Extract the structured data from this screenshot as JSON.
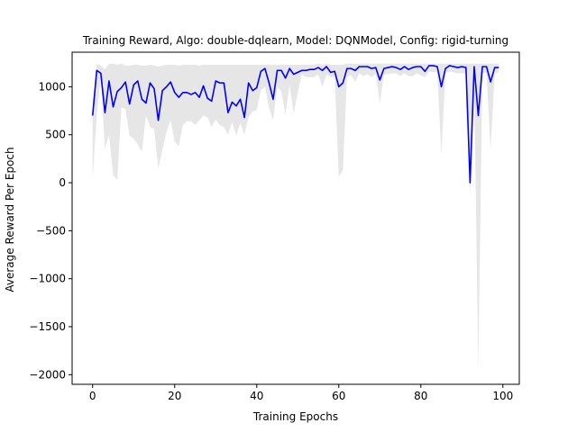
{
  "chart_data": {
    "type": "line",
    "title": "Training Reward, Algo: double-dqlearn, Model: DQNModel, Config: rigid-turning",
    "xlabel": "Training Epochs",
    "ylabel": "Average Reward Per Epoch",
    "xlim": [
      -5,
      104
    ],
    "ylim": [
      -2100,
      1360
    ],
    "xticks": [
      0,
      20,
      40,
      60,
      80,
      100
    ],
    "xtick_labels": [
      "0",
      "20",
      "40",
      "60",
      "80",
      "100"
    ],
    "yticks": [
      -2000,
      -1500,
      -1000,
      -500,
      0,
      500,
      1000
    ],
    "ytick_labels": [
      "−2000",
      "−1500",
      "−1000",
      "−500",
      "0",
      "500",
      "1000"
    ],
    "grid": false,
    "series": [
      {
        "color": "#0000ff",
        "x": [
          0,
          1,
          2,
          3,
          4,
          5,
          6,
          7,
          8,
          9,
          10,
          11,
          12,
          13,
          14,
          15,
          16,
          17,
          18,
          19,
          20,
          21,
          22,
          23,
          24,
          25,
          26,
          27,
          28,
          29,
          30,
          31,
          32,
          33,
          34,
          35,
          36,
          37,
          38,
          39,
          40,
          41,
          42,
          43,
          44,
          45,
          46,
          47,
          48,
          49,
          50,
          51,
          52,
          53,
          54,
          55,
          56,
          57,
          58,
          59,
          60,
          61,
          62,
          63,
          64,
          65,
          66,
          67,
          68,
          69,
          70,
          71,
          72,
          73,
          74,
          75,
          76,
          77,
          78,
          79,
          80,
          81,
          82,
          83,
          84,
          85,
          86,
          87,
          88,
          89,
          90,
          91,
          92,
          93,
          94,
          95,
          96,
          97,
          98,
          99
        ],
        "y": [
          700,
          1170,
          1140,
          730,
          1060,
          790,
          950,
          990,
          1050,
          820,
          1020,
          1060,
          870,
          830,
          1040,
          980,
          650,
          960,
          1000,
          1050,
          940,
          890,
          940,
          940,
          920,
          940,
          890,
          1010,
          880,
          850,
          1060,
          1040,
          1040,
          730,
          840,
          800,
          870,
          680,
          1040,
          960,
          990,
          1160,
          1190,
          1040,
          870,
          1170,
          1170,
          1090,
          1190,
          1130,
          1150,
          1170,
          1170,
          1180,
          1180,
          1200,
          1170,
          1210,
          1150,
          1160,
          1000,
          1040,
          1190,
          1190,
          1170,
          1210,
          1210,
          1210,
          1190,
          1200,
          1070,
          1190,
          1200,
          1210,
          1200,
          1180,
          1210,
          1180,
          1200,
          1210,
          1210,
          1160,
          1220,
          1220,
          1210,
          1000,
          1190,
          1220,
          1210,
          1200,
          1210,
          1200,
          0,
          1210,
          700,
          1210,
          1210,
          1050,
          1200,
          1200
        ]
      }
    ],
    "band": {
      "color": "#e6e6e6",
      "x": [
        0,
        1,
        2,
        3,
        4,
        5,
        6,
        7,
        8,
        9,
        10,
        11,
        12,
        13,
        14,
        15,
        16,
        17,
        18,
        19,
        20,
        21,
        22,
        23,
        24,
        25,
        26,
        27,
        28,
        29,
        30,
        31,
        32,
        33,
        34,
        35,
        36,
        37,
        38,
        39,
        40,
        41,
        42,
        43,
        44,
        45,
        46,
        47,
        48,
        49,
        50,
        51,
        52,
        53,
        54,
        55,
        56,
        57,
        58,
        59,
        60,
        61,
        62,
        63,
        64,
        65,
        66,
        67,
        68,
        69,
        70,
        71,
        72,
        73,
        74,
        75,
        76,
        77,
        78,
        79,
        80,
        81,
        82,
        83,
        84,
        85,
        86,
        87,
        88,
        89,
        90,
        91,
        92,
        93,
        94,
        95,
        96,
        97,
        98,
        99
      ],
      "lower": [
        40,
        700,
        1080,
        350,
        500,
        80,
        30,
        780,
        770,
        490,
        460,
        400,
        320,
        700,
        580,
        560,
        150,
        340,
        530,
        650,
        430,
        380,
        600,
        640,
        640,
        600,
        650,
        700,
        680,
        580,
        660,
        600,
        580,
        500,
        630,
        490,
        620,
        500,
        680,
        740,
        760,
        960,
        1000,
        780,
        650,
        1000,
        950,
        710,
        1020,
        720,
        940,
        1130,
        1100,
        1100,
        1100,
        1130,
        1000,
        1130,
        1100,
        1100,
        60,
        130,
        1100,
        1120,
        1050,
        1140,
        1110,
        1130,
        1100,
        1140,
        830,
        1130,
        1130,
        1140,
        1140,
        1110,
        1140,
        1110,
        1110,
        1140,
        1120,
        1100,
        1160,
        1150,
        1160,
        290,
        1140,
        1160,
        1150,
        1140,
        1140,
        1140,
        -130,
        1100,
        -1970,
        1140,
        1140,
        340,
        1140,
        1150
      ],
      "upper": [
        800,
        1240,
        1220,
        1180,
        1240,
        1240,
        1230,
        1240,
        1220,
        1220,
        1230,
        1230,
        1220,
        1220,
        1230,
        1220,
        1210,
        1220,
        1230,
        1230,
        1230,
        1220,
        1230,
        1230,
        1230,
        1230,
        1220,
        1230,
        1230,
        1230,
        1230,
        1230,
        1230,
        1230,
        1230,
        1230,
        1230,
        1230,
        1230,
        1230,
        1230,
        1230,
        1230,
        1230,
        1230,
        1230,
        1230,
        1230,
        1230,
        1230,
        1230,
        1230,
        1230,
        1230,
        1230,
        1240,
        1230,
        1240,
        1230,
        1230,
        1230,
        1230,
        1240,
        1240,
        1240,
        1240,
        1240,
        1240,
        1240,
        1240,
        1240,
        1240,
        1240,
        1240,
        1240,
        1240,
        1240,
        1240,
        1240,
        1240,
        1240,
        1240,
        1240,
        1240,
        1240,
        1240,
        1240,
        1240,
        1240,
        1240,
        1240,
        1240,
        1240,
        1240,
        1240,
        1240,
        1240,
        1240,
        1240,
        1240
      ]
    }
  }
}
